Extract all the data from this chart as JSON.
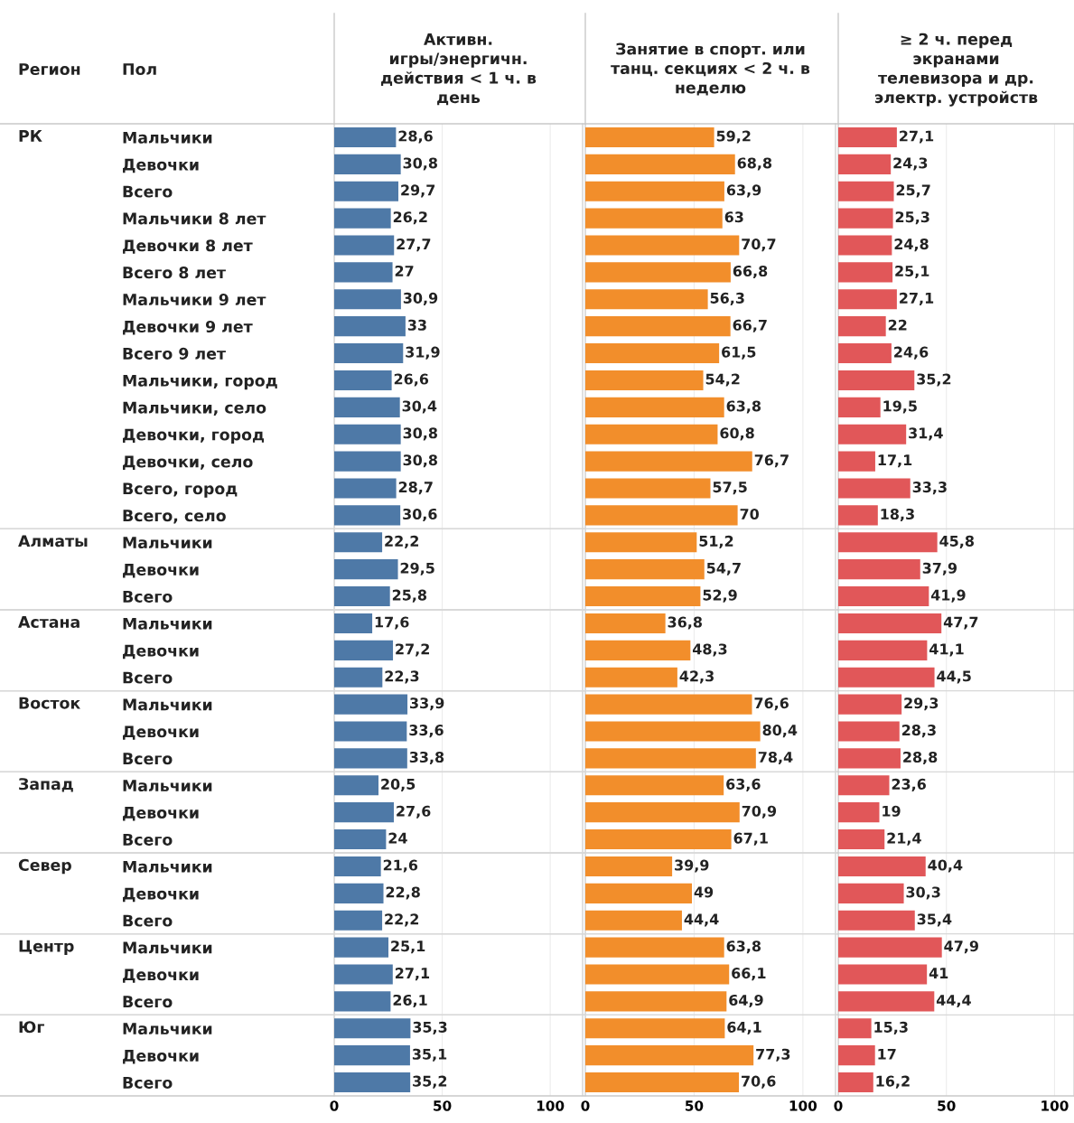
{
  "chart_data": [
    {
      "type": "bar",
      "orientation": "horizontal",
      "title": "Активн.\nигры/энергичн.\nдействия < 1 ч. в\nдень",
      "annotations": [
        "Регион",
        "Пол"
      ],
      "categories": [
        "Мальчики",
        "Девочки",
        "Всего",
        "Мальчики 8 лет",
        "Девочки 8 лет",
        "Всего 8 лет",
        "Мальчики 9 лет",
        "Девочки 9 лет",
        "Всего 9 лет",
        "Мальчики, город",
        "Мальчики, село",
        "Девочки, город",
        "Девочки, село",
        "Всего, город",
        "Всего, село",
        "Мальчики",
        "Девочки",
        "Всего",
        "Мальчики",
        "Девочки",
        "Всего",
        "Мальчики",
        "Девочки",
        "Всего",
        "Мальчики",
        "Девочки",
        "Всего",
        "Мальчики",
        "Девочки",
        "Всего",
        "Мальчики",
        "Девочки",
        "Всего",
        "Мальчики",
        "Девочки",
        "Всего"
      ],
      "y_categories": [
        "РК",
        null,
        null,
        null,
        null,
        null,
        null,
        null,
        null,
        null,
        null,
        null,
        null,
        null,
        null,
        "Алматы",
        null,
        null,
        "Астана",
        null,
        null,
        "Восток",
        null,
        null,
        "Запад",
        null,
        null,
        "Север",
        null,
        null,
        "Центр",
        null,
        null,
        "Юг",
        null,
        null
      ],
      "series": [
        {
          "color": "#4e79a7",
          "values": [
            28.6,
            30.8,
            29.7,
            26.2,
            27.7,
            27,
            30.9,
            33,
            31.9,
            26.6,
            30.4,
            30.8,
            30.8,
            28.7,
            30.6,
            22.2,
            29.5,
            25.8,
            17.6,
            27.2,
            22.3,
            33.9,
            33.6,
            33.8,
            20.5,
            27.6,
            24,
            21.6,
            22.8,
            22.2,
            25.1,
            27.1,
            26.1,
            35.3,
            35.1,
            35.2
          ],
          "value_labels": [
            "28,6",
            "30,8",
            "29,7",
            "26,2",
            "27,7",
            "27",
            "30,9",
            "33",
            "31,9",
            "26,6",
            "30,4",
            "30,8",
            "30,8",
            "28,7",
            "30,6",
            "22,2",
            "29,5",
            "25,8",
            "17,6",
            "27,2",
            "22,3",
            "33,9",
            "33,6",
            "33,8",
            "20,5",
            "27,6",
            "24",
            "21,6",
            "22,8",
            "22,2",
            "25,1",
            "27,1",
            "26,1",
            "35,3",
            "35,1",
            "35,2"
          ]
        }
      ],
      "xlim": [
        0,
        115
      ],
      "xticks": [
        0,
        50,
        100
      ],
      "grid": "x",
      "legend": false
    },
    {
      "type": "bar",
      "orientation": "horizontal",
      "title": "Занятие в спорт. или\nтанц. секциях < 2 ч. в\nнеделю",
      "tick_labels": "x",
      "series": [
        {
          "color": "#f28e2b",
          "values": [
            59.2,
            68.8,
            63.9,
            63,
            70.7,
            66.8,
            56.3,
            66.7,
            61.5,
            54.2,
            63.8,
            60.8,
            76.7,
            57.5,
            70,
            51.2,
            54.7,
            52.9,
            36.8,
            48.3,
            42.3,
            76.6,
            80.4,
            78.4,
            63.6,
            70.9,
            67.1,
            39.9,
            49,
            44.4,
            63.8,
            66.1,
            64.9,
            64.1,
            77.3,
            70.6
          ],
          "value_labels": [
            "59,2",
            "68,8",
            "63,9",
            "63",
            "70,7",
            "66,8",
            "56,3",
            "66,7",
            "61,5",
            "54,2",
            "63,8",
            "60,8",
            "76,7",
            "57,5",
            "70",
            "51,2",
            "54,7",
            "52,9",
            "36,8",
            "48,3",
            "42,3",
            "76,6",
            "80,4",
            "78,4",
            "63,6",
            "70,9",
            "67,1",
            "39,9",
            "49",
            "44,4",
            "63,8",
            "66,1",
            "64,9",
            "64,1",
            "77,3",
            "70,6"
          ]
        }
      ],
      "xlim": [
        0,
        115
      ],
      "xticks": [
        0,
        50,
        100
      ],
      "grid": "x",
      "legend": false
    },
    {
      "type": "bar",
      "orientation": "horizontal",
      "title": "≥ 2 ч. перед\nэкранами\nтелевизора и др.\nэлектр. устройств",
      "tick_labels": "x",
      "series": [
        {
          "color": "#e15759",
          "values": [
            27.1,
            24.3,
            25.7,
            25.3,
            24.8,
            25.1,
            27.1,
            22,
            24.6,
            35.2,
            19.5,
            31.4,
            17.1,
            33.3,
            18.3,
            45.8,
            37.9,
            41.9,
            47.7,
            41.1,
            44.5,
            29.3,
            28.3,
            28.8,
            23.6,
            19,
            21.4,
            40.4,
            30.3,
            35.4,
            47.9,
            41,
            44.4,
            15.3,
            17,
            16.2
          ],
          "value_labels": [
            "27,1",
            "24,3",
            "25,7",
            "25,3",
            "24,8",
            "25,1",
            "27,1",
            "22",
            "24,6",
            "35,2",
            "19,5",
            "31,4",
            "17,1",
            "33,3",
            "18,3",
            "45,8",
            "37,9",
            "41,9",
            "47,7",
            "41,1",
            "44,5",
            "29,3",
            "28,3",
            "28,8",
            "23,6",
            "19",
            "21,4",
            "40,4",
            "30,3",
            "35,4",
            "47,9",
            "41",
            "44,4",
            "15,3",
            "17",
            "16,2"
          ]
        }
      ],
      "xlim": [
        0,
        109
      ],
      "xticks": [
        0,
        50,
        100
      ],
      "grid": "x",
      "legend": false
    }
  ]
}
